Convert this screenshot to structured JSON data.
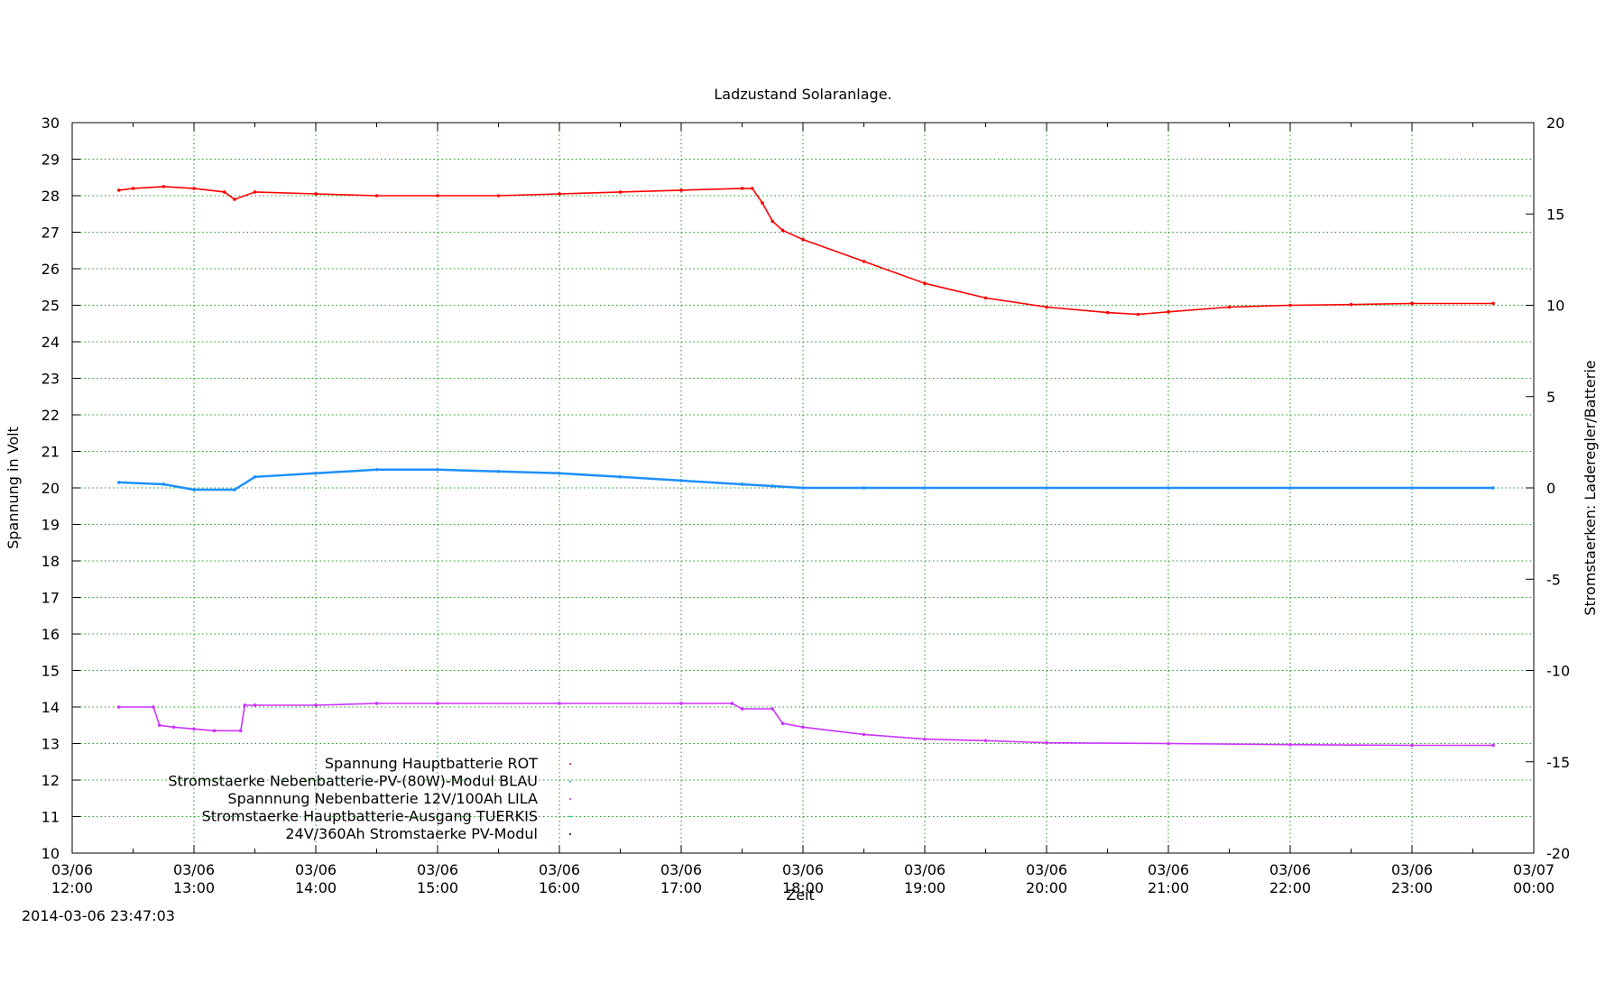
{
  "chart_data": {
    "type": "scatter",
    "title": "Ladzustand Solaranlage.",
    "xlabel": "Zeit",
    "ylabel": "Spannung in Volt",
    "y2label": "Stromstaerken: Laderegler/Batterie",
    "ylim": [
      10,
      30
    ],
    "y2lim": [
      -20,
      20
    ],
    "y_ticks": [
      "10",
      "11",
      "12",
      "13",
      "14",
      "15",
      "16",
      "17",
      "18",
      "19",
      "20",
      "21",
      "22",
      "23",
      "24",
      "25",
      "26",
      "27",
      "28",
      "29",
      "30"
    ],
    "y2_ticks": [
      "-20",
      "-15",
      "-10",
      "-5",
      "0",
      "5",
      "10",
      "15",
      "20"
    ],
    "x_ticks": [
      {
        "date": "03/06",
        "time": "12:00"
      },
      {
        "date": "03/06",
        "time": "13:00"
      },
      {
        "date": "03/06",
        "time": "14:00"
      },
      {
        "date": "03/06",
        "time": "15:00"
      },
      {
        "date": "03/06",
        "time": "16:00"
      },
      {
        "date": "03/06",
        "time": "17:00"
      },
      {
        "date": "03/06",
        "time": "18:00"
      },
      {
        "date": "03/06",
        "time": "19:00"
      },
      {
        "date": "03/06",
        "time": "20:00"
      },
      {
        "date": "03/06",
        "time": "21:00"
      },
      {
        "date": "03/06",
        "time": "22:00"
      },
      {
        "date": "03/06",
        "time": "23:00"
      },
      {
        "date": "03/07",
        "time": "00:00"
      }
    ],
    "xlim": [
      "12:00",
      "24:00"
    ],
    "grid": true,
    "legend_position": "bottom-left",
    "series": [
      {
        "name": "Spannung Hauptbatterie ROT",
        "color": "#ff0000",
        "axis": "y1",
        "x": [
          "12:23",
          "12:30",
          "12:45",
          "13:00",
          "13:15",
          "13:20",
          "13:30",
          "14:00",
          "14:30",
          "15:00",
          "15:30",
          "16:00",
          "16:30",
          "17:00",
          "17:30",
          "17:35",
          "17:40",
          "17:45",
          "17:50",
          "18:00",
          "18:30",
          "19:00",
          "19:30",
          "20:00",
          "20:30",
          "20:45",
          "21:00",
          "21:30",
          "22:00",
          "22:30",
          "23:00",
          "23:40"
        ],
        "y": [
          28.15,
          28.2,
          28.25,
          28.2,
          28.1,
          27.9,
          28.1,
          28.05,
          28.0,
          28.0,
          28.0,
          28.05,
          28.1,
          28.15,
          28.2,
          28.2,
          27.8,
          27.3,
          27.05,
          26.8,
          26.2,
          25.6,
          25.2,
          24.95,
          24.8,
          24.75,
          24.82,
          24.95,
          25.0,
          25.02,
          25.05,
          25.05
        ]
      },
      {
        "name": "Stromstaerke Nebenbatterie-PV-(80W)-Modul BLAU",
        "color": "#1e90ff",
        "axis": "y2",
        "x": [
          "12:23",
          "12:45",
          "13:00",
          "13:20",
          "13:30",
          "14:00",
          "14:30",
          "15:00",
          "15:30",
          "16:00",
          "16:30",
          "17:00",
          "17:30",
          "17:45",
          "18:00",
          "18:30",
          "19:00",
          "20:00",
          "21:00",
          "22:00",
          "23:00",
          "23:40"
        ],
        "y": [
          0.3,
          0.2,
          -0.1,
          -0.1,
          0.6,
          0.8,
          1.0,
          1.0,
          0.9,
          0.8,
          0.6,
          0.4,
          0.2,
          0.1,
          0.0,
          0.0,
          0.0,
          0.0,
          0.0,
          0.0,
          0.0,
          0.0
        ]
      },
      {
        "name": "Spannnung Nebenbatterie 12V/100Ah LILA",
        "color": "#cc33ff",
        "axis": "y1",
        "x": [
          "12:23",
          "12:40",
          "12:43",
          "12:50",
          "13:00",
          "13:10",
          "13:23",
          "13:25",
          "13:30",
          "14:00",
          "14:30",
          "15:00",
          "16:00",
          "17:00",
          "17:25",
          "17:30",
          "17:45",
          "17:50",
          "18:00",
          "18:30",
          "19:00",
          "19:30",
          "20:00",
          "21:00",
          "22:00",
          "23:00",
          "23:40"
        ],
        "y": [
          14.0,
          14.0,
          13.5,
          13.45,
          13.4,
          13.35,
          13.35,
          14.05,
          14.05,
          14.05,
          14.1,
          14.1,
          14.1,
          14.1,
          14.1,
          13.95,
          13.95,
          13.55,
          13.45,
          13.25,
          13.12,
          13.08,
          13.02,
          13.0,
          12.97,
          12.95,
          12.95
        ]
      },
      {
        "name": "Stromstaerke Hauptbatterie-Ausgang TUERKIS",
        "color": "#00c0c0",
        "axis": "y2",
        "x": [],
        "y": []
      },
      {
        "name": "24V/360Ah Stromstaerke PV-Modul",
        "color": "#000000",
        "axis": "y2",
        "x": [],
        "y": []
      }
    ]
  },
  "footer": {
    "timestamp": "2014-03-06 23:47:03"
  }
}
